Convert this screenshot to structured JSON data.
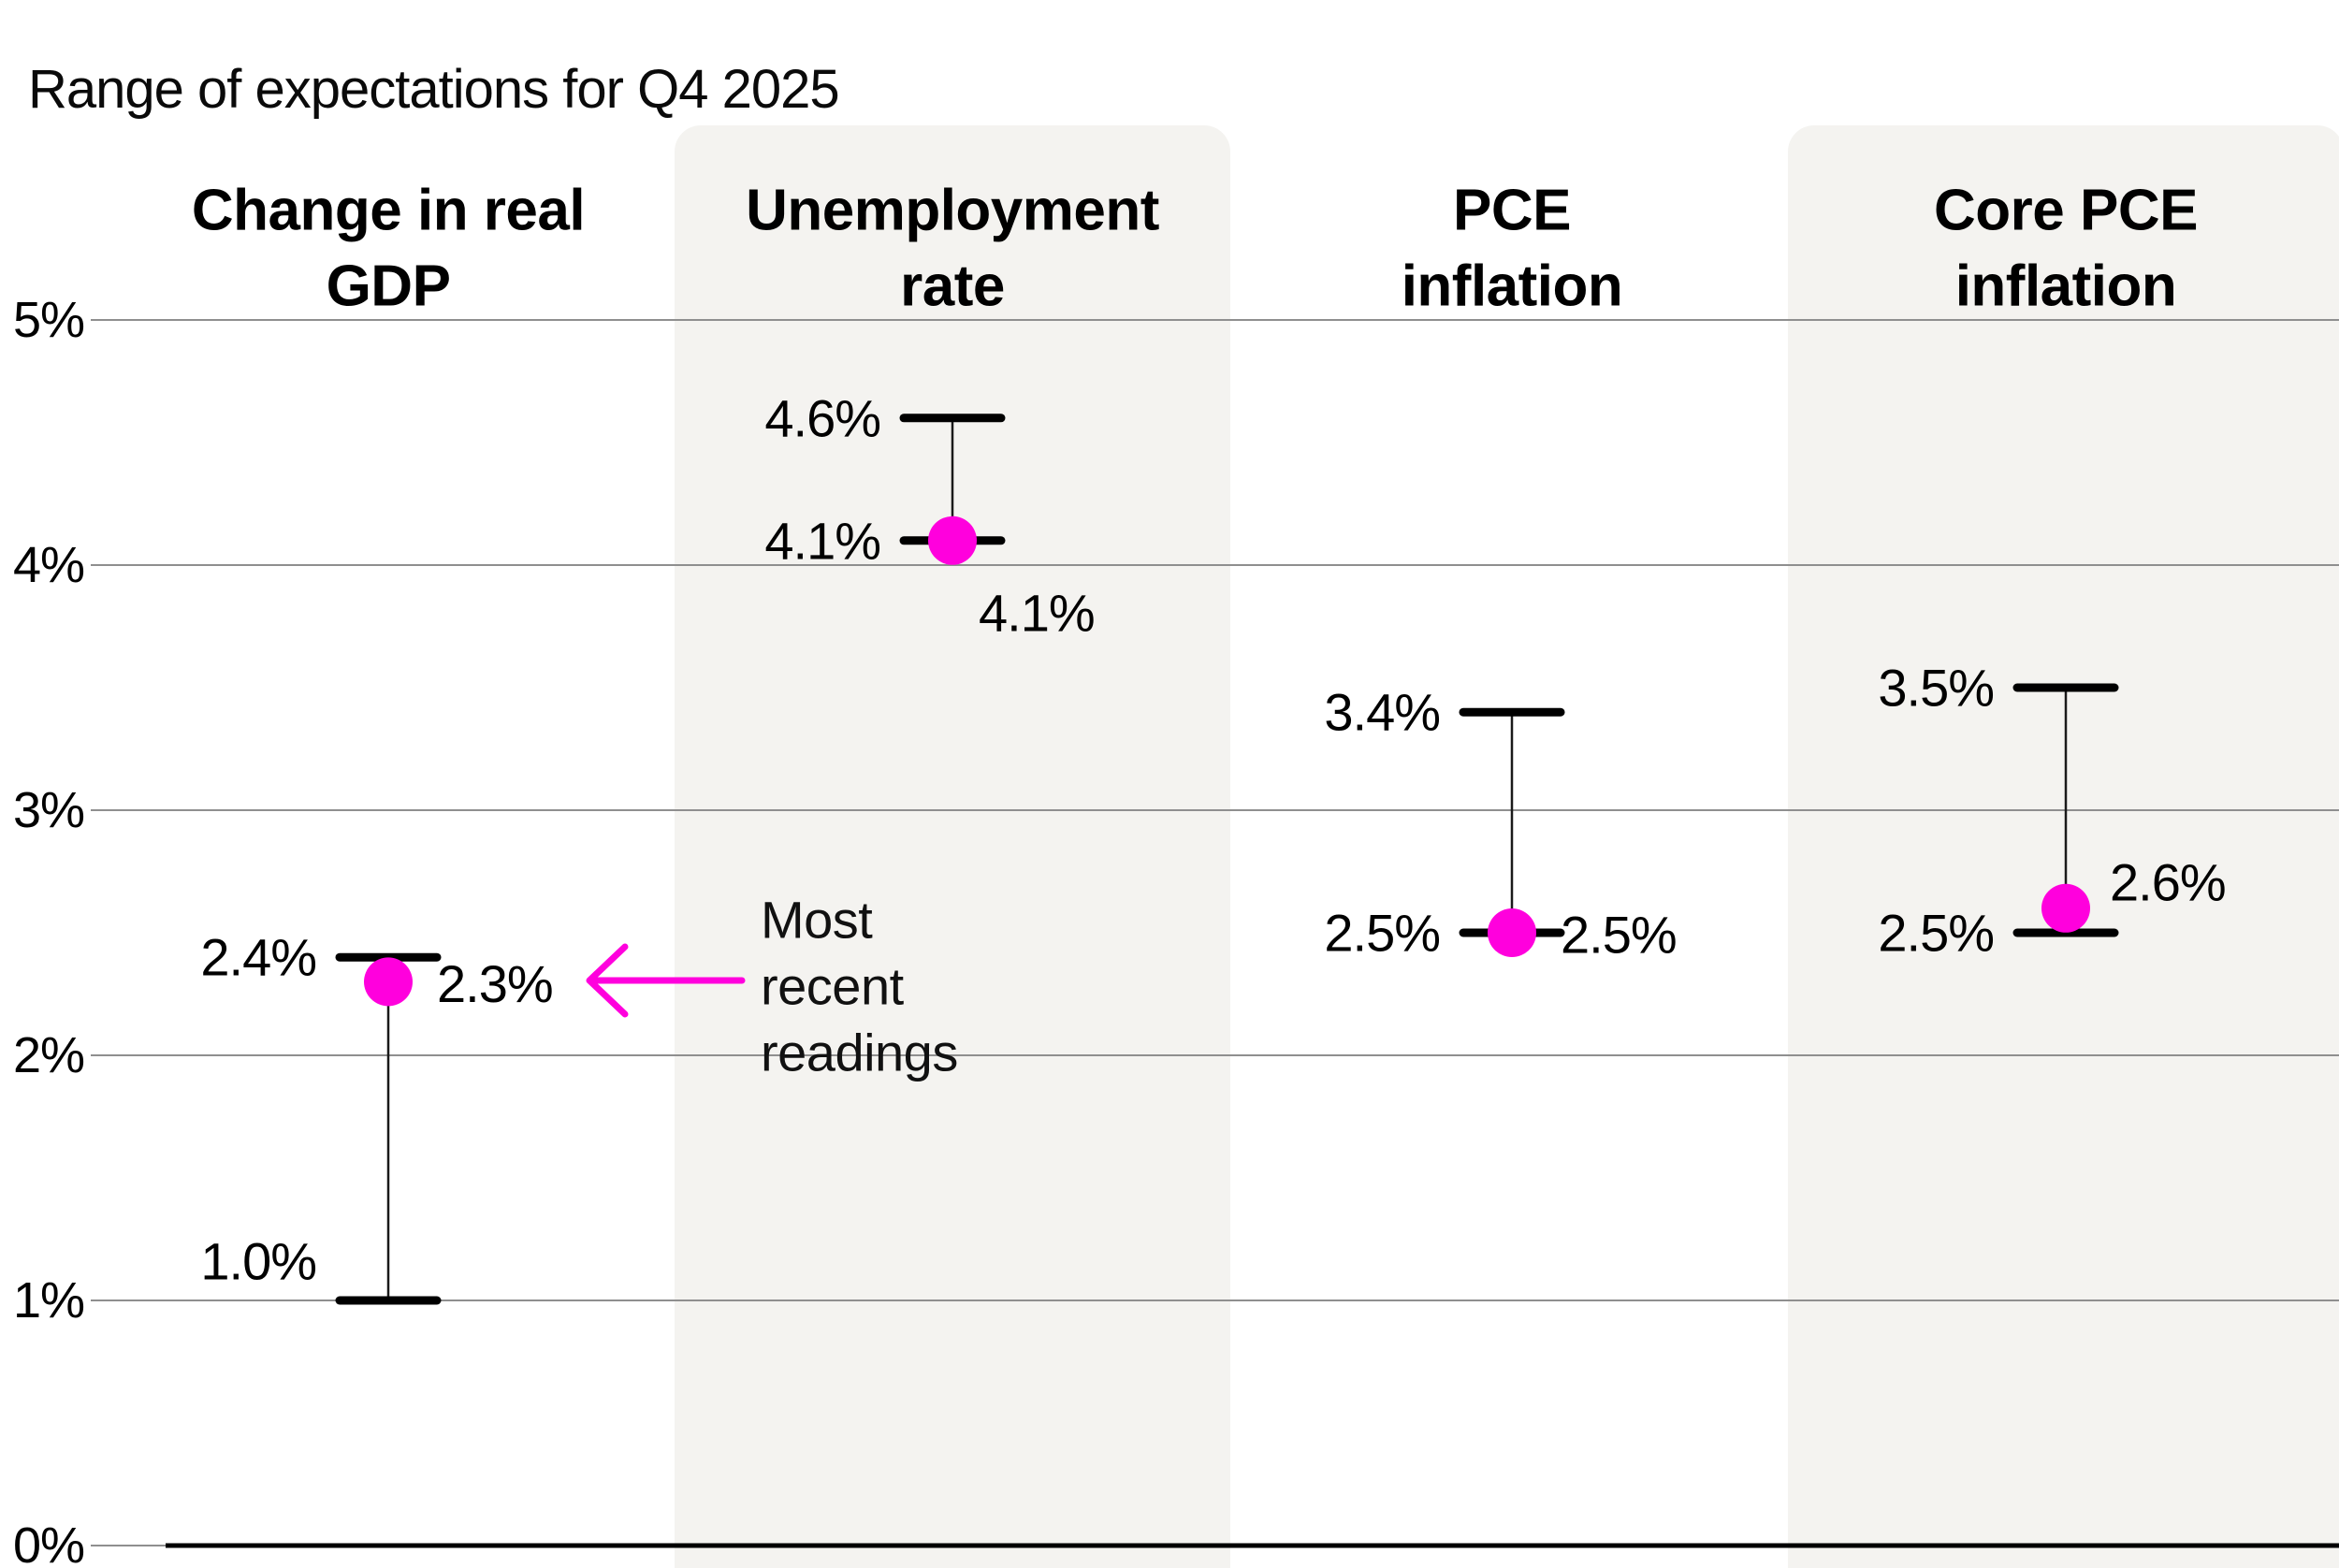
{
  "title": "Range of expectations for Q4 2025",
  "colors": {
    "accent": "#FF00DD",
    "band": "#F4F3F0",
    "grid": "#8F8F8F",
    "axis": "#000000",
    "cap": "#000000",
    "connector": "#1A1A1A",
    "text": "#000000"
  },
  "annotation": {
    "text": "Most recent readings",
    "lines": [
      "Most",
      "recent",
      "readings"
    ],
    "arrow_icon": "left-arrow",
    "points_to": "2.3%"
  },
  "chart_data": {
    "type": "range",
    "title": "Range of expectations for Q4 2025",
    "unit": "%",
    "ylim": [
      0,
      5
    ],
    "grid": "horizontal",
    "legend_note": "Most recent readings",
    "y_ticks": [
      {
        "value": 5,
        "label": "5%"
      },
      {
        "value": 4,
        "label": "4%"
      },
      {
        "value": 3,
        "label": "3%"
      },
      {
        "value": 2,
        "label": "2%"
      },
      {
        "value": 1,
        "label": "1%"
      },
      {
        "value": 0,
        "label": "0%"
      }
    ],
    "categories": [
      "Change in real GDP",
      "Unemployment rate",
      "PCE inflation",
      "Core PCE inflation"
    ],
    "series": [
      {
        "name": "Change in real GDP",
        "header_lines": [
          "Change in real",
          "GDP"
        ],
        "band": false,
        "high": {
          "value": 2.4,
          "label": "2.4%",
          "label_pos": "side"
        },
        "low": {
          "value": 1.0,
          "label": "1.0%",
          "label_pos": "above"
        },
        "recent": {
          "value": 2.3,
          "label": "2.3%",
          "label_pos": "right"
        }
      },
      {
        "name": "Unemployment rate",
        "header_lines": [
          "Unemployment",
          "rate"
        ],
        "band": true,
        "high": {
          "value": 4.6,
          "label": "4.6%",
          "label_pos": "side"
        },
        "low": {
          "value": 4.1,
          "label": "4.1%",
          "label_pos": "side"
        },
        "recent": {
          "value": 4.1,
          "label": "4.1%",
          "label_pos": "below"
        }
      },
      {
        "name": "PCE inflation",
        "header_lines": [
          "PCE",
          "inflation"
        ],
        "band": false,
        "high": {
          "value": 3.4,
          "label": "3.4%",
          "label_pos": "side"
        },
        "low": {
          "value": 2.5,
          "label": "2.5%",
          "label_pos": "side"
        },
        "recent": {
          "value": 2.5,
          "label": "2.5%",
          "label_pos": "right"
        }
      },
      {
        "name": "Core PCE inflation",
        "header_lines": [
          "Core PCE",
          "inflation"
        ],
        "band": true,
        "high": {
          "value": 3.5,
          "label": "3.5%",
          "label_pos": "side"
        },
        "low": {
          "value": 2.5,
          "label": "2.5%",
          "label_pos": "side"
        },
        "recent": {
          "value": 2.6,
          "label": "2.6%",
          "label_pos": "right-up"
        }
      }
    ]
  }
}
